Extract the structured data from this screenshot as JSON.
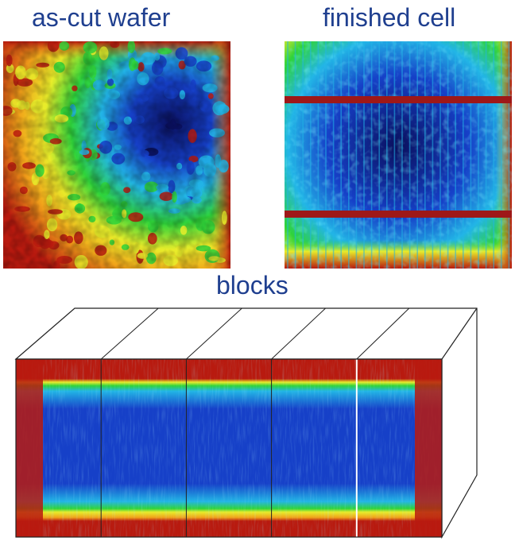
{
  "labels": {
    "wafer": "as-cut wafer",
    "cell": "finished cell",
    "blocks": "blocks"
  },
  "colors": {
    "label_text": "#1f3f8f",
    "scale_high": "#b81a0f",
    "scale_mid_high": "#f1a21a",
    "scale_mid": "#e8ec2a",
    "scale_mid_low": "#2fd33a",
    "scale_low": "#22b5e6",
    "scale_very_low": "#1640c8",
    "scale_min": "#0a0f5c",
    "busbar": "#9e1818",
    "outline": "#222222"
  },
  "figure": {
    "panels": [
      "wafer-map",
      "cell-map",
      "block-maps"
    ],
    "block_count": 5,
    "cell_busbar_count": 2
  }
}
